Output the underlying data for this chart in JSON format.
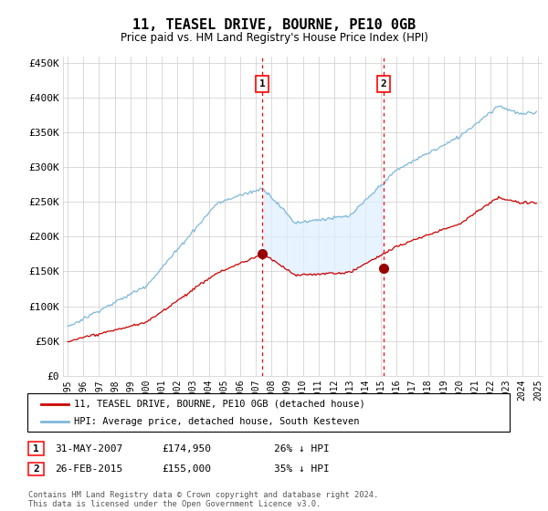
{
  "title": "11, TEASEL DRIVE, BOURNE, PE10 0GB",
  "subtitle": "Price paid vs. HM Land Registry's House Price Index (HPI)",
  "legend_line1": "11, TEASEL DRIVE, BOURNE, PE10 0GB (detached house)",
  "legend_line2": "HPI: Average price, detached house, South Kesteven",
  "footnote": "Contains HM Land Registry data © Crown copyright and database right 2024.\nThis data is licensed under the Open Government Licence v3.0.",
  "transaction1_date": "31-MAY-2007",
  "transaction1_price": "£174,950",
  "transaction1_hpi": "26% ↓ HPI",
  "transaction2_date": "26-FEB-2015",
  "transaction2_price": "£155,000",
  "transaction2_hpi": "35% ↓ HPI",
  "hpi_color": "#7fb8d8",
  "price_color": "#cc0000",
  "shade_color": "#ddeeff",
  "marker1_x": 2007.42,
  "marker1_y": 174950,
  "marker2_x": 2015.15,
  "marker2_y": 155000,
  "ylim": [
    0,
    460000
  ],
  "yticks": [
    0,
    50000,
    100000,
    150000,
    200000,
    250000,
    300000,
    350000,
    400000,
    450000
  ],
  "ytick_labels": [
    "£0",
    "£50K",
    "£100K",
    "£150K",
    "£200K",
    "£250K",
    "£300K",
    "£350K",
    "£400K",
    "£450K"
  ],
  "xlim_start": 1994.7,
  "xlim_end": 2025.3
}
